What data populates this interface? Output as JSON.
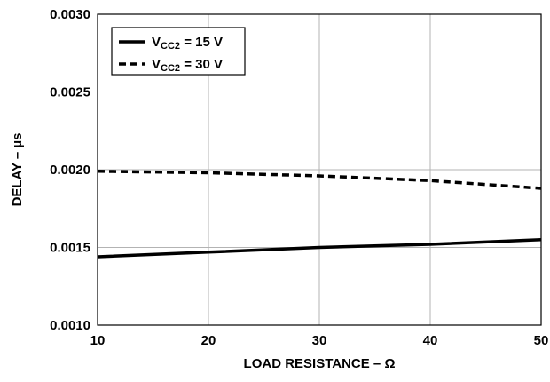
{
  "chart_data": {
    "type": "line",
    "title": "",
    "xlabel": "LOAD RESISTANCE – Ω",
    "ylabel": "DELAY – µs",
    "xlim": [
      10,
      50
    ],
    "ylim": [
      0.001,
      0.003
    ],
    "grid": true,
    "legend_position": "top-left",
    "x_ticks": [
      "10",
      "20",
      "30",
      "40",
      "50"
    ],
    "y_ticks": [
      "0.0010",
      "0.0015",
      "0.0020",
      "0.0025",
      "0.0030"
    ],
    "x_tick_values": [
      10,
      20,
      30,
      40,
      50
    ],
    "y_tick_values": [
      0.001,
      0.0015,
      0.002,
      0.0025,
      0.003
    ],
    "series": [
      {
        "name": "VCC2 = 15 V",
        "label_main": "V",
        "label_sub": "CC2",
        "label_rest": " = 15 V",
        "style": "solid",
        "x": [
          10,
          20,
          30,
          40,
          50
        ],
        "y": [
          0.00144,
          0.00147,
          0.0015,
          0.00152,
          0.00155
        ]
      },
      {
        "name": "VCC2 = 30 V",
        "label_main": "V",
        "label_sub": "CC2",
        "label_rest": " = 30 V",
        "style": "dashed",
        "x": [
          10,
          20,
          30,
          40,
          50
        ],
        "y": [
          0.00199,
          0.00198,
          0.00196,
          0.00193,
          0.00188
        ]
      }
    ]
  }
}
